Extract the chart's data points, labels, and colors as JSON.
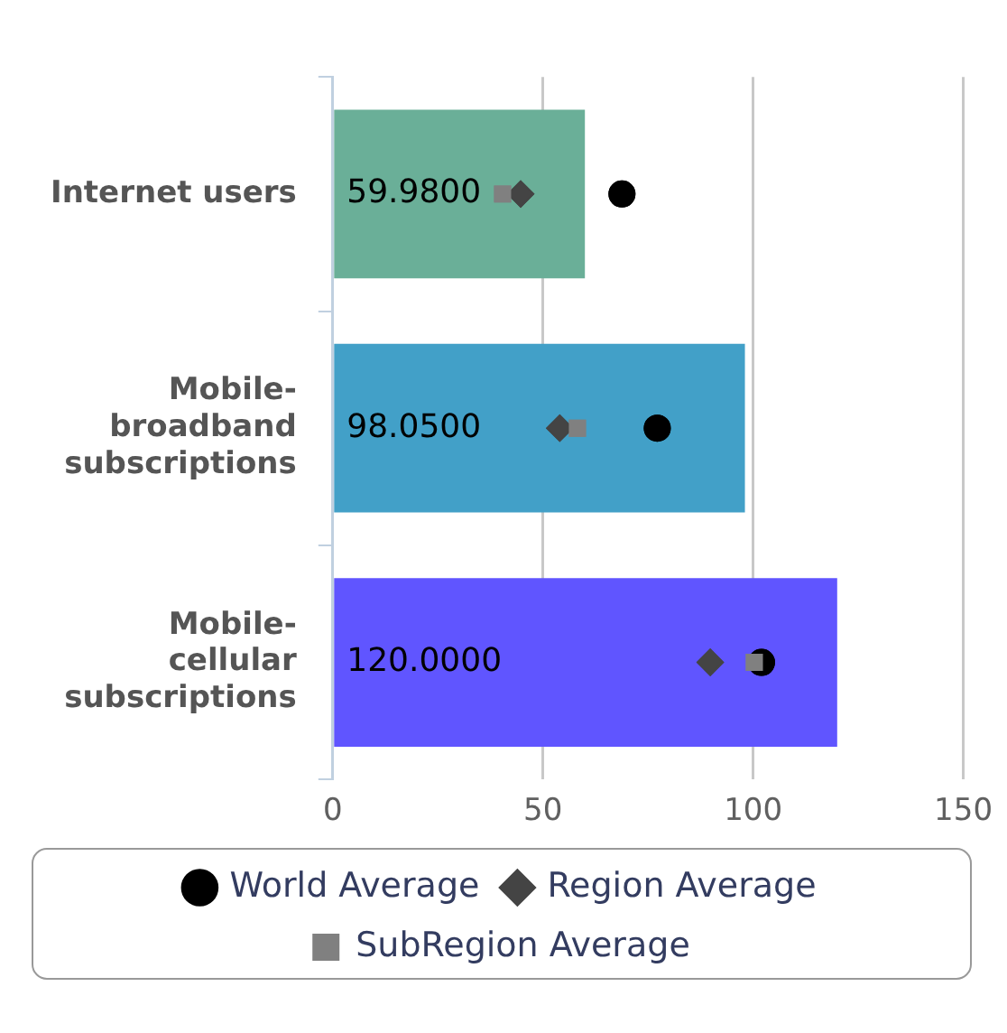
{
  "chart_data": {
    "type": "bar",
    "orientation": "horizontal",
    "categories": [
      "Internet users",
      "Mobile-broadband subscriptions",
      "Mobile-cellular subscriptions"
    ],
    "xlim": [
      0,
      150
    ],
    "xticks": [
      0,
      50,
      100,
      150
    ],
    "grid": "x",
    "legend": "bottom",
    "series": [
      {
        "colors": [
          "#6aaf98",
          "#42a0c8",
          "#6055ff"
        ],
        "values": [
          59.98,
          98.05,
          120
        ],
        "value_labels": [
          "59.9800",
          "98.0500",
          "120.0000"
        ]
      },
      {
        "type": "scatter",
        "name": "World Average",
        "color": "#000000",
        "marker": "circle",
        "values": [
          68.8,
          77.2,
          102
        ]
      },
      {
        "type": "scatter",
        "name": "Region Average",
        "color": "#444444",
        "marker": "diamond",
        "values": [
          44.7,
          54,
          89.8
        ]
      },
      {
        "type": "scatter",
        "name": "SubRegion Average",
        "color": "#808080",
        "marker": "square",
        "values": [
          40.4,
          58.2,
          100.3
        ]
      }
    ]
  }
}
